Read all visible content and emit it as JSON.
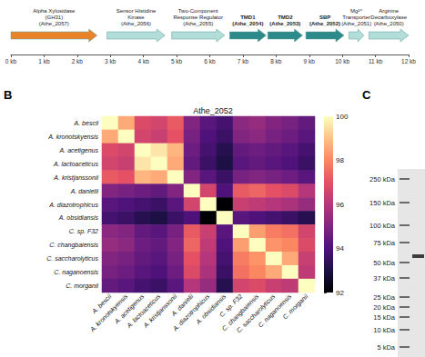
{
  "gene_map": {
    "xlim": [
      0,
      12
    ],
    "xticks": [
      {
        "value": 0,
        "label": "0 kb"
      },
      {
        "value": 1,
        "label": "1 kb"
      },
      {
        "value": 2,
        "label": "2 kb"
      },
      {
        "value": 3,
        "label": "3 kb"
      },
      {
        "value": 4,
        "label": "4 kb"
      },
      {
        "value": 5,
        "label": "5 kb"
      },
      {
        "value": 6,
        "label": "6 kb"
      },
      {
        "value": 7,
        "label": "7 kb"
      },
      {
        "value": 8,
        "label": "8 kb"
      },
      {
        "value": 9,
        "label": "9 kb"
      },
      {
        "value": 10,
        "label": "10 kb"
      },
      {
        "value": 11,
        "label": "11 kb"
      },
      {
        "value": 12,
        "label": "12 kb"
      }
    ],
    "genes": [
      {
        "lines": [
          "Alpha Xylosidase",
          "(GH31)",
          "(Athe_2057)"
        ],
        "start": 0,
        "end": 2.6,
        "color": "#e8832a",
        "bold": false
      },
      {
        "lines": [
          "Sensor Histidine",
          "Kinase",
          "(Athe_2056)"
        ],
        "start": 2.9,
        "end": 4.65,
        "color": "#b3ddd8",
        "bold": false
      },
      {
        "lines": [
          "Two-Component",
          "Response Regulator",
          "(Athe_2055)"
        ],
        "start": 4.85,
        "end": 6.45,
        "color": "#b3ddd8",
        "bold": false
      },
      {
        "lines": [
          "TMD1",
          "(Athe_2054)"
        ],
        "start": 6.6,
        "end": 7.7,
        "color": "#2c8a8a",
        "bold": true
      },
      {
        "lines": [
          "TMD2",
          "(Athe_2053)"
        ],
        "start": 7.75,
        "end": 8.8,
        "color": "#2c8a8a",
        "bold": true
      },
      {
        "lines": [
          "SBP",
          "(Athe_2052)"
        ],
        "start": 8.9,
        "end": 10.05,
        "color": "#2c8a8a",
        "bold": true
      },
      {
        "lines": [
          "Mg²⁺",
          "Transporter",
          "(Athe_2051)"
        ],
        "start": 10.2,
        "end": 10.65,
        "color": "#b3ddd8",
        "bold": false
      },
      {
        "lines": [
          "Arginine",
          "Decarboxylase",
          "(Athe_2050)"
        ],
        "start": 10.8,
        "end": 12,
        "color": "#b3ddd8",
        "bold": false
      }
    ]
  },
  "panel_labels": {
    "heatmap": "B",
    "gel": "C"
  },
  "chart_data": {
    "type": "heatmap",
    "title": "Athe_2052",
    "categories": [
      "A. bescii",
      "A. kronotskyensis",
      "A. acetigenus",
      "A. lactoaceticus",
      "A. kristjanssonii",
      "A. danielii",
      "A. diazotrophicus",
      "A. obsidiansis",
      "C. sp. F32",
      "C. changbaiensis",
      "C. saccharolyticus",
      "C. naganoensis",
      "C. morganii"
    ],
    "values": [
      [
        100,
        98.6,
        96.8,
        96.6,
        97.2,
        95.0,
        94.2,
        93.8,
        95.2,
        95.4,
        95.0,
        94.8,
        94.4
      ],
      [
        98.6,
        100,
        96.6,
        96.4,
        97.0,
        94.8,
        94.0,
        93.6,
        95.0,
        95.2,
        94.8,
        94.6,
        94.2
      ],
      [
        96.8,
        96.6,
        100,
        99.6,
        98.8,
        94.6,
        93.8,
        93.2,
        94.4,
        94.6,
        94.4,
        94.2,
        93.8
      ],
      [
        96.6,
        96.4,
        99.6,
        100,
        98.6,
        94.4,
        93.6,
        93.0,
        94.2,
        94.4,
        94.2,
        94.0,
        93.6
      ],
      [
        97.2,
        97.0,
        98.8,
        98.6,
        100,
        95.0,
        94.2,
        93.6,
        94.8,
        95.0,
        94.8,
        94.6,
        94.2
      ],
      [
        95.0,
        94.8,
        94.6,
        94.4,
        95.0,
        100,
        96.6,
        94.0,
        97.2,
        97.4,
        97.0,
        96.8,
        96.0
      ],
      [
        94.2,
        94.0,
        93.8,
        93.6,
        94.2,
        96.6,
        100,
        92.0,
        96.4,
        96.2,
        96.0,
        95.8,
        95.4
      ],
      [
        93.8,
        93.6,
        93.2,
        93.0,
        93.6,
        94.0,
        92.0,
        100,
        94.2,
        94.0,
        93.8,
        93.6,
        93.2
      ],
      [
        95.2,
        95.0,
        94.4,
        94.2,
        94.8,
        97.2,
        96.4,
        94.2,
        100,
        98.4,
        97.8,
        97.6,
        96.6
      ],
      [
        95.4,
        95.2,
        94.6,
        94.4,
        95.0,
        97.4,
        96.2,
        94.0,
        98.4,
        100,
        98.2,
        98.0,
        96.8
      ],
      [
        95.0,
        94.8,
        94.4,
        94.2,
        94.8,
        97.0,
        96.0,
        93.8,
        97.8,
        98.2,
        100,
        98.6,
        96.4
      ],
      [
        94.8,
        94.6,
        94.2,
        94.0,
        94.6,
        96.8,
        95.8,
        93.6,
        97.6,
        98.0,
        98.6,
        100,
        96.2
      ],
      [
        94.4,
        94.2,
        93.8,
        93.6,
        94.2,
        96.0,
        95.4,
        93.2,
        96.6,
        96.8,
        96.4,
        96.2,
        100
      ]
    ],
    "colorbar": {
      "range": [
        92,
        100
      ],
      "ticks": [
        92,
        94,
        96,
        98,
        100
      ]
    }
  },
  "gel": {
    "ladder": [
      "250 kDa",
      "150 kDa",
      "100 kDa",
      "75 kDa",
      "50 kDa",
      "37 kDa",
      "25 kDa",
      "20 kDa",
      "15 kDa",
      "10 kDa",
      "5 kDa"
    ]
  }
}
